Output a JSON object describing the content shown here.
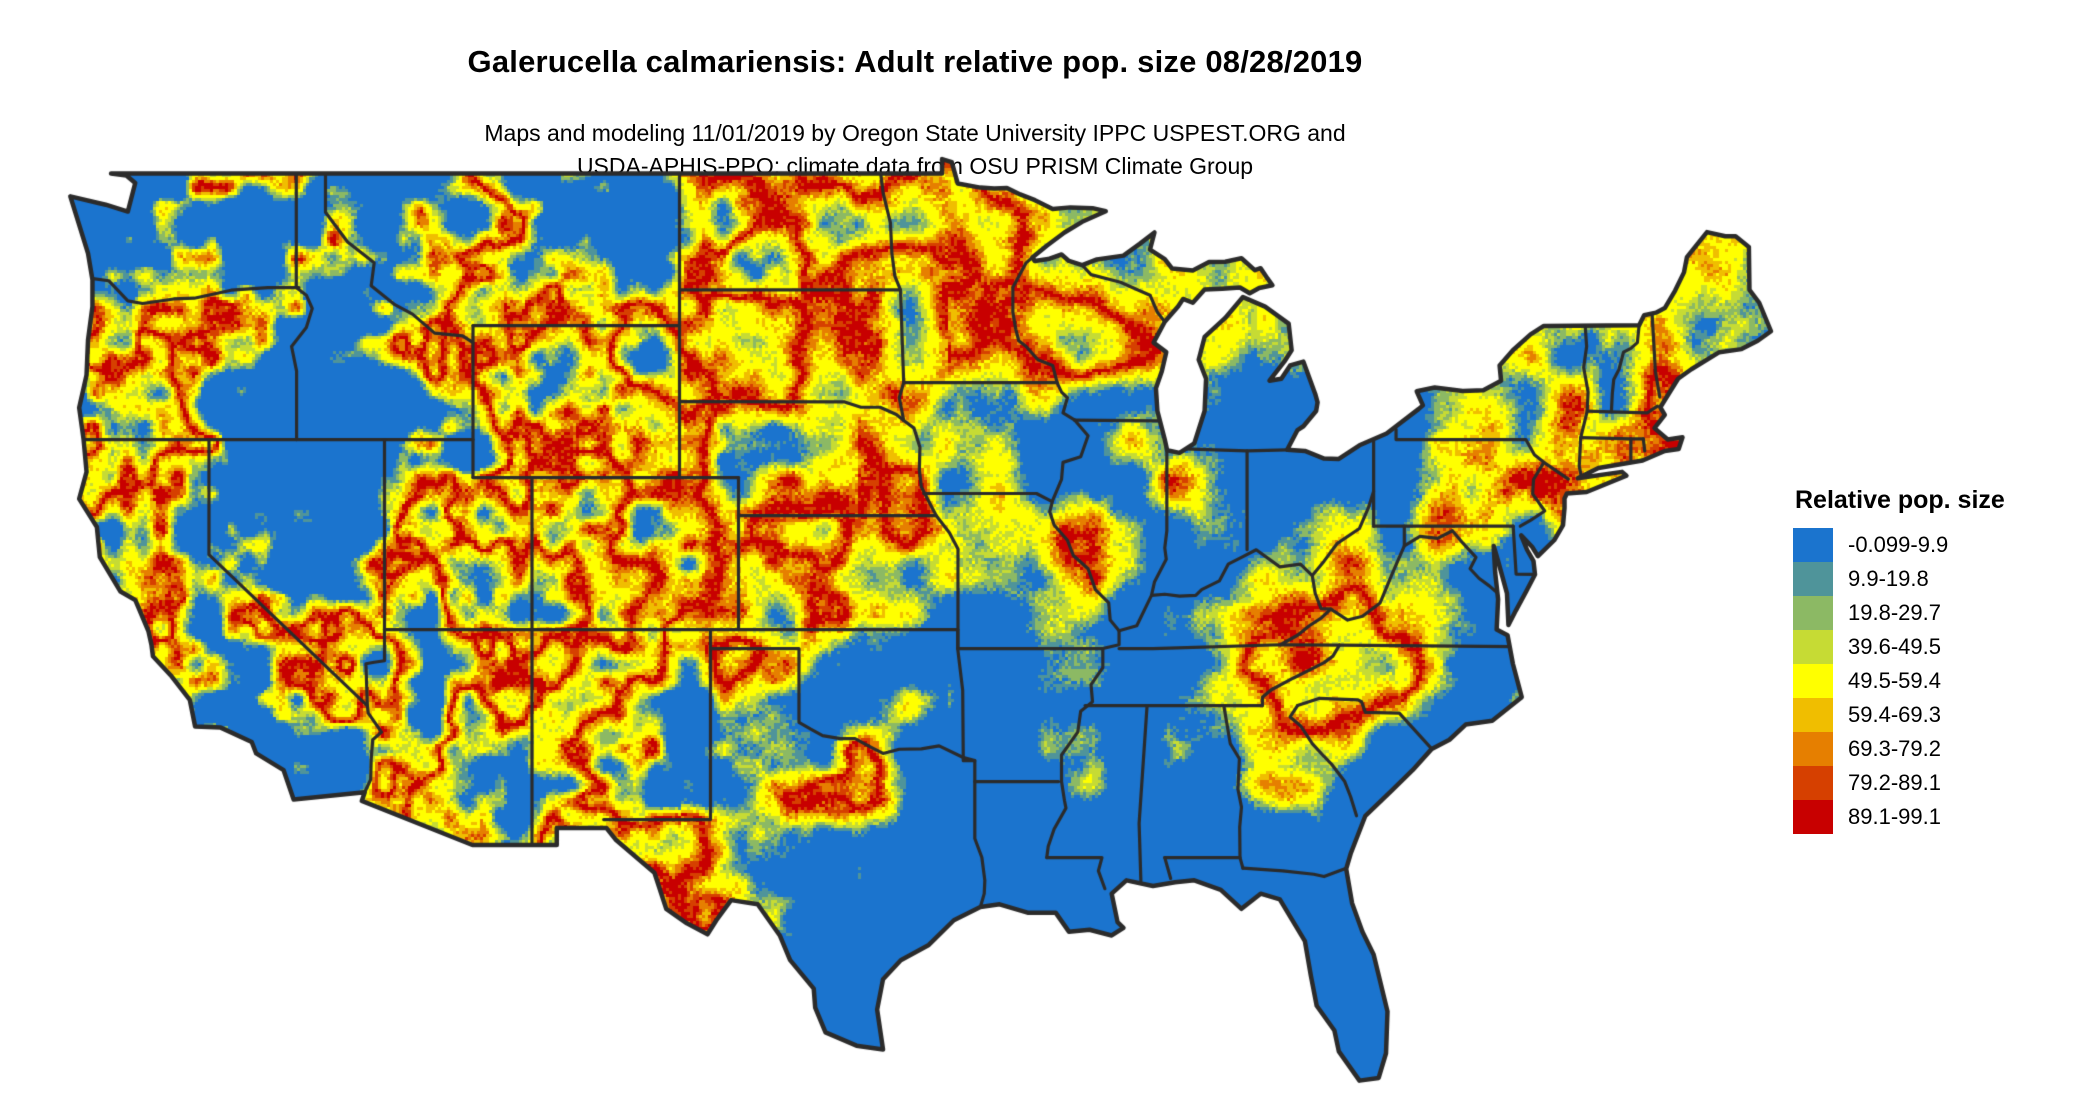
{
  "header": {
    "title": "Galerucella calmariensis: Adult relative pop. size 08/28/2019",
    "subtitle_line1": "Maps and modeling 11/01/2019 by Oregon State University IPPC USPEST.ORG and",
    "subtitle_line2": "USDA-APHIS-PPQ; climate data from OSU PRISM Climate Group"
  },
  "legend": {
    "title": "Relative pop. size",
    "items": [
      {
        "label": "-0.099-9.9",
        "color": "#1B74CE"
      },
      {
        "label": "9.9-19.8",
        "color": "#4F949A"
      },
      {
        "label": "19.8-29.7",
        "color": "#8CB964"
      },
      {
        "label": "39.6-49.5",
        "color": "#C6DB34"
      },
      {
        "label": "49.5-59.4",
        "color": "#FFFF00"
      },
      {
        "label": "59.4-69.3",
        "color": "#F0BE00"
      },
      {
        "label": "69.3-79.2",
        "color": "#E67F00"
      },
      {
        "label": "79.2-89.1",
        "color": "#D64000"
      },
      {
        "label": "89.1-99.1",
        "color": "#C80000"
      }
    ]
  },
  "map": {
    "region_label": "Contiguous United States relative population size raster map",
    "water_background": "#FFFFFF",
    "base_color": "#1B74CE",
    "boundary_color": "#2B2B2B"
  }
}
